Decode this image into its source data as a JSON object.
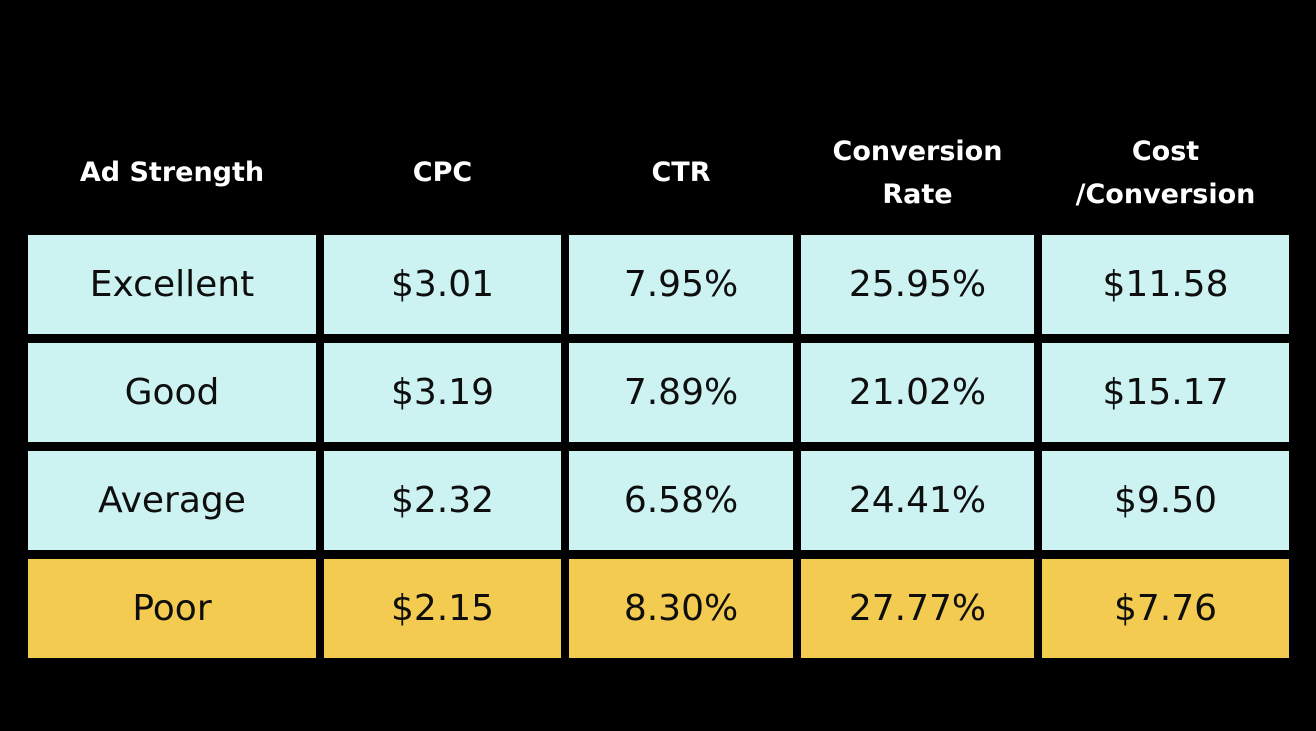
{
  "colors": {
    "background": "#000000",
    "header_text": "#FFFFFF",
    "row_background": "#CDF2F2",
    "highlight_row_background": "#F3CB50",
    "cell_text": "#0E0E0E"
  },
  "table": {
    "columns": [
      "Ad Strength",
      "CPC",
      "CTR",
      "Conversion\nRate",
      "Cost\n/Conversion"
    ],
    "rows": [
      [
        "Excellent",
        "$3.01",
        "7.95%",
        "25.95%",
        "$11.58"
      ],
      [
        "Good",
        "$3.19",
        "7.89%",
        "21.02%",
        "$15.17"
      ],
      [
        "Average",
        "$2.32",
        "6.58%",
        "24.41%",
        "$9.50"
      ],
      [
        "Poor",
        "$2.15",
        "8.30%",
        "27.77%",
        "$7.76"
      ]
    ],
    "highlighted_row": "Poor"
  },
  "chart_data": {
    "type": "table",
    "title": "",
    "columns": [
      "Ad Strength",
      "CPC",
      "CTR",
      "Conversion Rate",
      "Cost /Conversion"
    ],
    "categories": [
      "Excellent",
      "Good",
      "Average",
      "Poor"
    ],
    "series": [
      {
        "name": "CPC",
        "unit": "$",
        "values": [
          3.01,
          3.19,
          2.32,
          2.15
        ]
      },
      {
        "name": "CTR",
        "unit": "%",
        "values": [
          7.95,
          7.89,
          6.58,
          8.3
        ]
      },
      {
        "name": "Conversion Rate",
        "unit": "%",
        "values": [
          25.95,
          21.02,
          24.41,
          27.77
        ]
      },
      {
        "name": "Cost /Conversion",
        "unit": "$",
        "values": [
          11.58,
          15.17,
          9.5,
          7.76
        ]
      }
    ],
    "highlighted_category": "Poor",
    "legend_position": "none",
    "grid": "black gaps between cells"
  }
}
